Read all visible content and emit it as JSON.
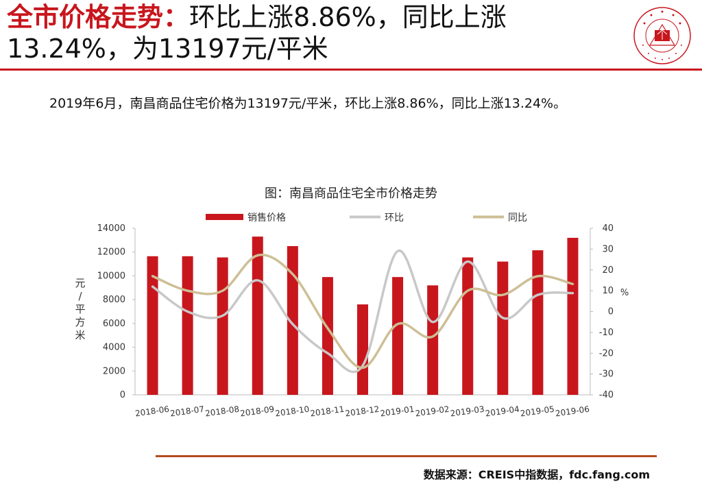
{
  "header": {
    "title_highlight": "全市价格走势：",
    "title_rest": "环比上涨8.86%，同比上涨13.24%，为13197元/平米"
  },
  "logo": {
    "name": "中国指数研究院",
    "text_en": "CHINA INDEX ACADEMY",
    "mark": "中指",
    "color": "#c8161d"
  },
  "summary": "2019年6月，南昌商品住宅价格为13197元/平米，环比上涨8.86%，同比上涨13.24%。",
  "chart_title": "图：南昌商品住宅全市价格走势",
  "chart_data": {
    "type": "bar",
    "categories": [
      "2018-06",
      "2018-07",
      "2018-08",
      "2018-09",
      "2018-10",
      "2018-11",
      "2018-12",
      "2019-01",
      "2019-02",
      "2019-03",
      "2019-04",
      "2019-05",
      "2019-06"
    ],
    "series": [
      {
        "name": "销售价格",
        "type": "bar",
        "axis": "left",
        "color": "#c8161d",
        "values": [
          11650,
          11650,
          11550,
          13300,
          12500,
          9900,
          7600,
          9900,
          9200,
          11550,
          11200,
          12150,
          13197
        ]
      },
      {
        "name": "环比",
        "type": "line",
        "axis": "right",
        "color": "#c8c8c8",
        "values": [
          12,
          0,
          -2,
          15,
          -6,
          -20,
          -26,
          29,
          -5,
          24,
          -3,
          8,
          8.86
        ]
      },
      {
        "name": "同比",
        "type": "line",
        "axis": "right",
        "color": "#cdbf95",
        "values": [
          17,
          10,
          10,
          27,
          18,
          -8,
          -27,
          -6,
          -12,
          10,
          8,
          17,
          13.24
        ]
      }
    ],
    "ylabel": "元/平方米",
    "y2label": "%",
    "ylim": [
      0,
      14000
    ],
    "y2lim": [
      -40,
      40
    ],
    "yticks": [
      0,
      2000,
      4000,
      6000,
      8000,
      10000,
      12000,
      14000
    ],
    "y2ticks": [
      -40,
      -30,
      -20,
      -10,
      0,
      10,
      20,
      30,
      40
    ],
    "legend_position": "top",
    "grid": false
  },
  "source": "数据来源：CREIS中指数据，fdc.fang.com"
}
